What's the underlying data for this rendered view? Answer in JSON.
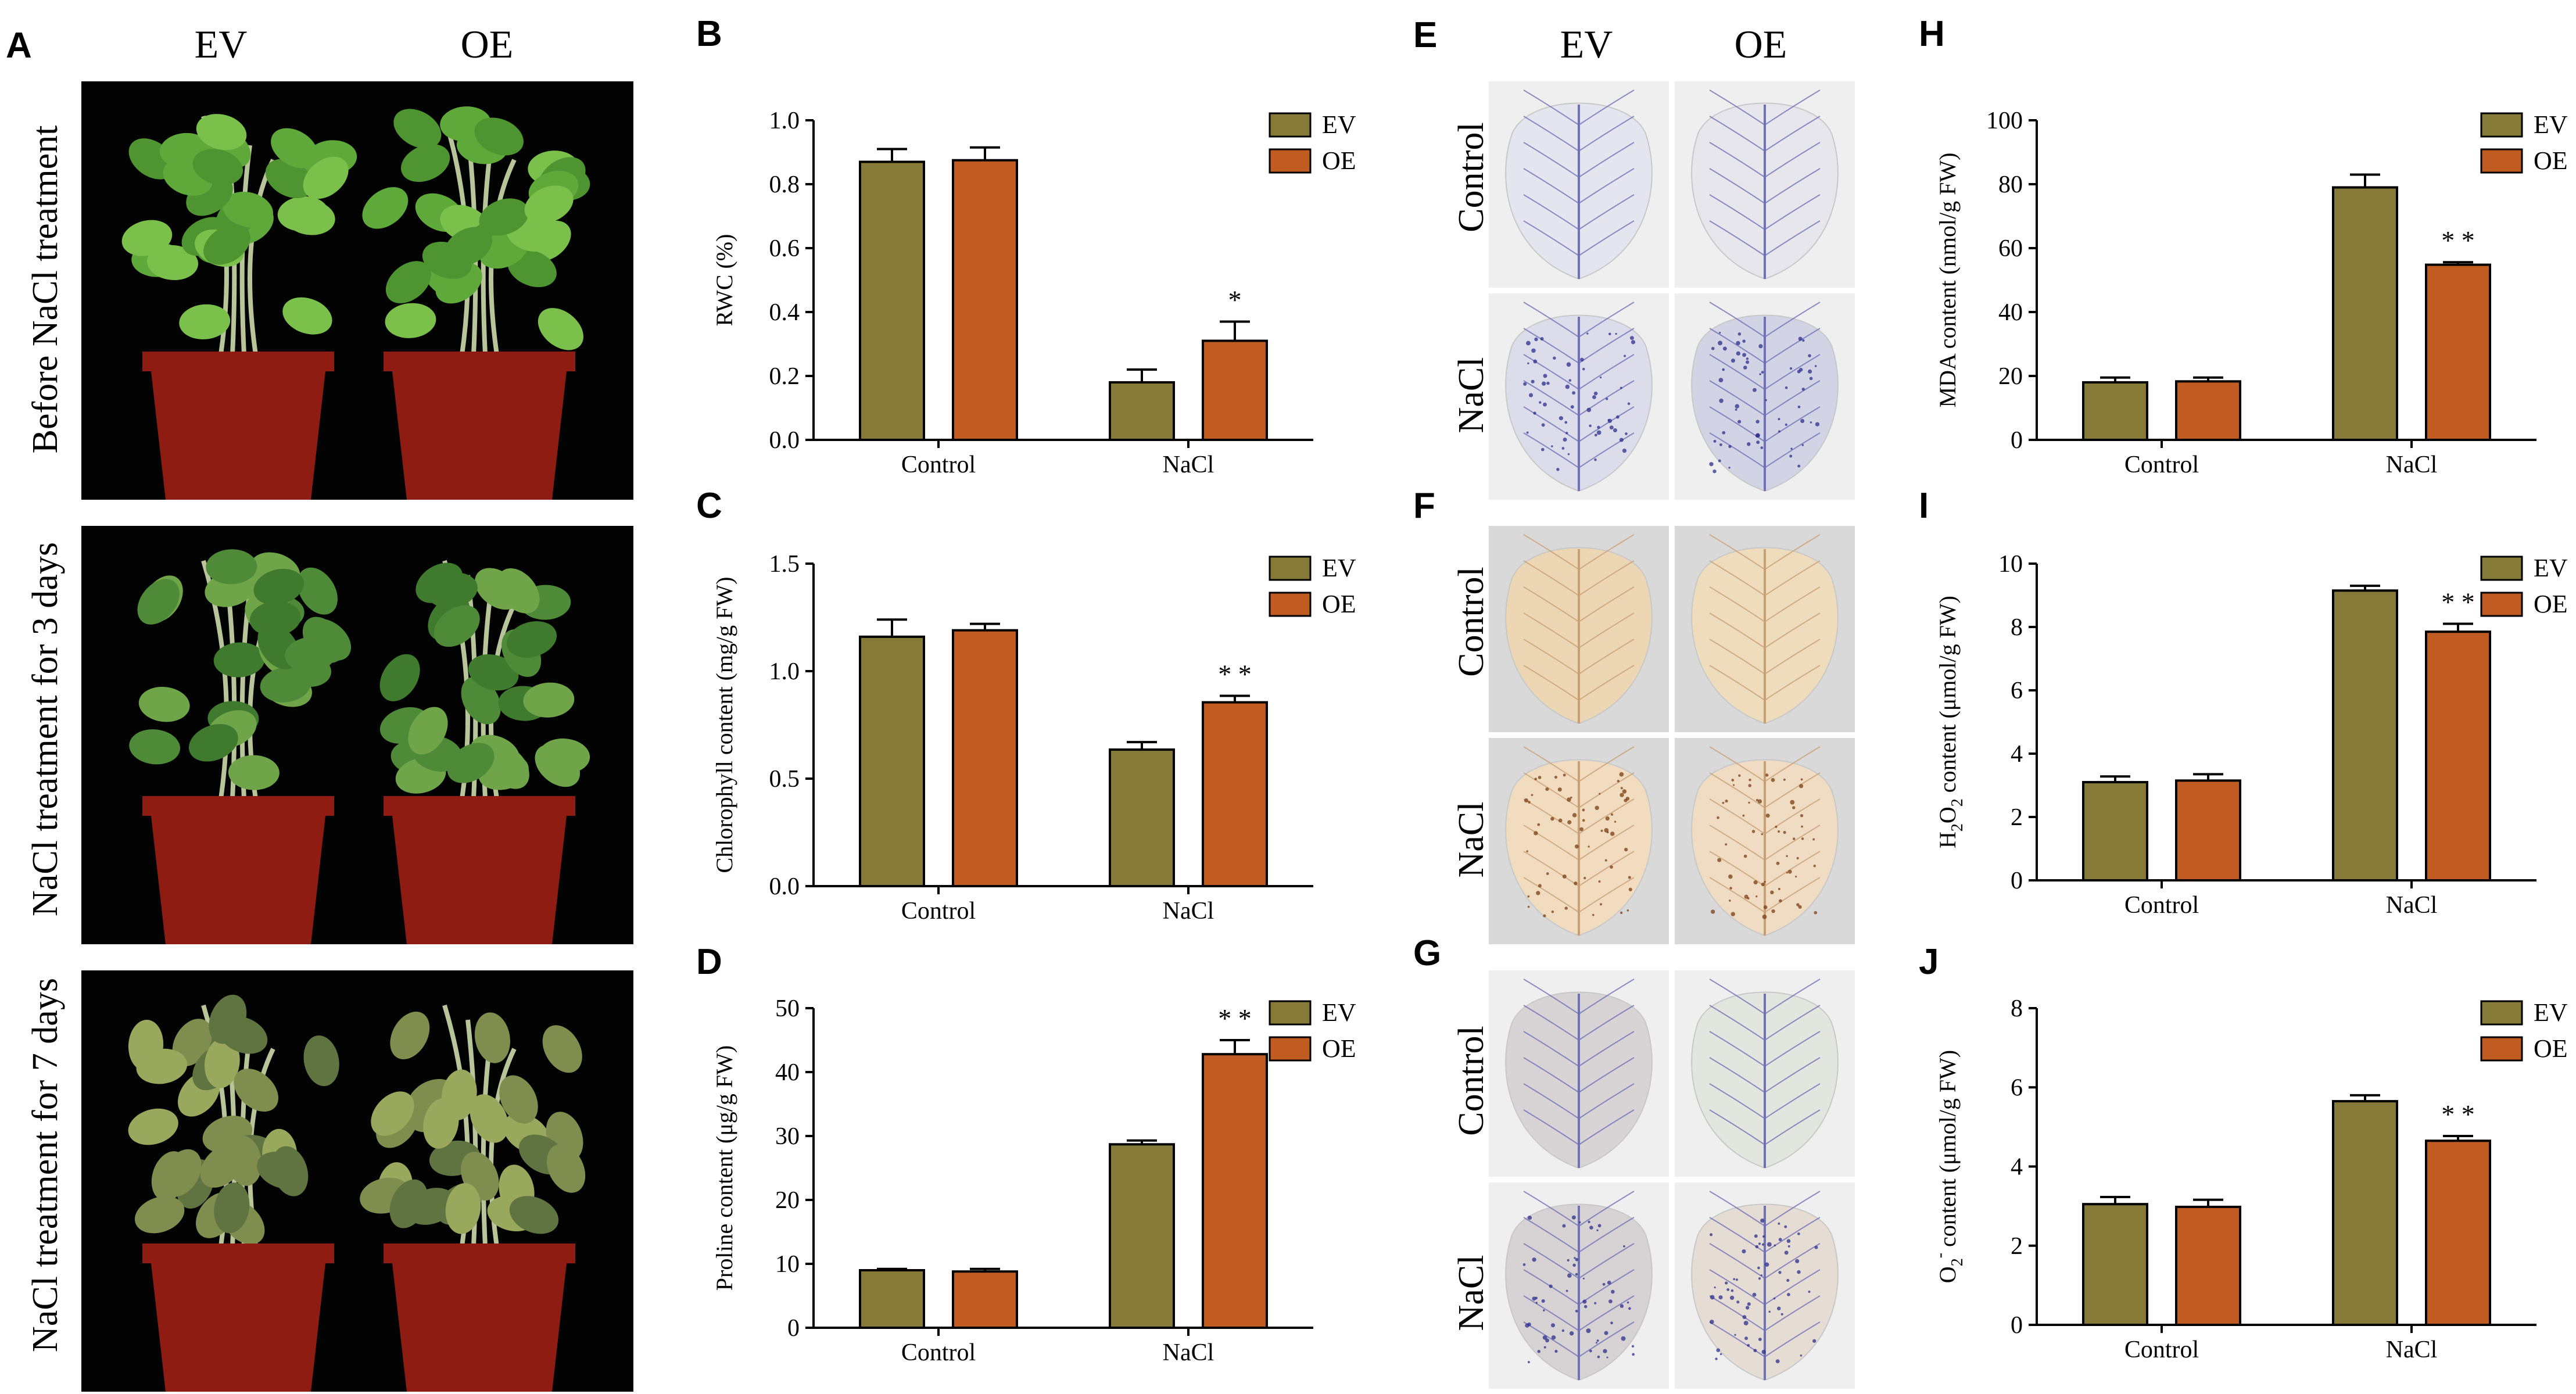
{
  "colors": {
    "EV": "#857a38",
    "OE": "#c05c22",
    "photo_bg": "#030303",
    "pot": "#8e1c12"
  },
  "panel_A": {
    "letter": "A",
    "columns": [
      "EV",
      "OE"
    ],
    "rows": [
      {
        "label": "Before NaCl treatment",
        "condition": "healthy"
      },
      {
        "label": "NaCl treatment for 3 days",
        "condition": "mild"
      },
      {
        "label": "NaCl treatment for 7 days",
        "condition": "severe"
      }
    ]
  },
  "staining": {
    "columns": [
      "EV",
      "OE"
    ],
    "rows": [
      "Control",
      "NaCl"
    ],
    "panels": [
      {
        "letter": "E",
        "stain": "NBT",
        "tiles": [
          [
            "#e5e5ef",
            "#e6e6ec"
          ],
          [
            "#dcdceb",
            "#d2d3e4"
          ]
        ]
      },
      {
        "letter": "F",
        "stain": "DAB",
        "tiles": [
          [
            "#ecd6b4",
            "#efdcbc"
          ],
          [
            "#f1dcc0",
            "#f0dcc2"
          ]
        ]
      },
      {
        "letter": "G",
        "stain": "NBT",
        "tiles": [
          [
            "#d8d3d4",
            "#e3e6de"
          ],
          [
            "#d7d2d3",
            "#e5dcd4"
          ]
        ]
      }
    ]
  },
  "chart_data": [
    {
      "letter": "B",
      "type": "bar",
      "title": "",
      "xlabel": "",
      "ylabel": "RWC (%)",
      "categories": [
        "Control",
        "NaCl"
      ],
      "ylim": [
        0,
        1.0
      ],
      "yticks": [
        "0.0",
        "0.2",
        "0.4",
        "0.6",
        "0.8",
        "1.0"
      ],
      "series": [
        {
          "name": "EV",
          "values": [
            0.87,
            0.18
          ],
          "errors": [
            0.04,
            0.04
          ]
        },
        {
          "name": "OE",
          "values": [
            0.875,
            0.31
          ],
          "errors": [
            0.04,
            0.06
          ]
        }
      ],
      "annotations": [
        {
          "category": 1,
          "series": 1,
          "text": "*"
        }
      ],
      "legend": "top-right"
    },
    {
      "letter": "C",
      "type": "bar",
      "title": "",
      "xlabel": "",
      "ylabel": "Chlorophyll content (mg/g FW)",
      "categories": [
        "Control",
        "NaCl"
      ],
      "ylim": [
        0,
        1.5
      ],
      "yticks": [
        "0.0",
        "0.5",
        "1.0",
        "1.5"
      ],
      "series": [
        {
          "name": "EV",
          "values": [
            1.16,
            0.635
          ],
          "errors": [
            0.08,
            0.035
          ]
        },
        {
          "name": "OE",
          "values": [
            1.19,
            0.855
          ],
          "errors": [
            0.03,
            0.03
          ]
        }
      ],
      "annotations": [
        {
          "category": 1,
          "series": 1,
          "text": "* *"
        }
      ],
      "legend": "top-right"
    },
    {
      "letter": "D",
      "type": "bar",
      "title": "",
      "xlabel": "",
      "ylabel": "Proline content (μg/g FW)",
      "categories": [
        "Control",
        "NaCl"
      ],
      "ylim": [
        0,
        50
      ],
      "yticks": [
        "0",
        "10",
        "20",
        "30",
        "40",
        "50"
      ],
      "series": [
        {
          "name": "EV",
          "values": [
            9.0,
            28.7
          ],
          "errors": [
            0.2,
            0.6
          ]
        },
        {
          "name": "OE",
          "values": [
            8.8,
            42.8
          ],
          "errors": [
            0.4,
            2.2
          ]
        }
      ],
      "annotations": [
        {
          "category": 1,
          "series": 1,
          "text": "* *"
        }
      ],
      "legend": "top-right"
    },
    {
      "letter": "H",
      "type": "bar",
      "title": "",
      "xlabel": "",
      "ylabel": "MDA  content (nmol/g FW)",
      "categories": [
        "Control",
        "NaCl"
      ],
      "ylim": [
        0,
        100
      ],
      "yticks": [
        "0",
        "20",
        "40",
        "60",
        "80",
        "100"
      ],
      "series": [
        {
          "name": "EV",
          "values": [
            18.0,
            79.0
          ],
          "errors": [
            1.5,
            4.0
          ]
        },
        {
          "name": "OE",
          "values": [
            18.3,
            54.8
          ],
          "errors": [
            1.2,
            0.8
          ]
        }
      ],
      "annotations": [
        {
          "category": 1,
          "series": 1,
          "text": "* *"
        }
      ],
      "legend": "top-right"
    },
    {
      "letter": "I",
      "type": "bar",
      "title": "",
      "xlabel": "",
      "ylabel": "H2O2 content (μmol/g FW)",
      "ylabel_parts": {
        "pre": "H",
        "sub1": "2",
        "mid": "O",
        "sub2": "2",
        "post": " content (μmol/g FW)"
      },
      "categories": [
        "Control",
        "NaCl"
      ],
      "ylim": [
        0,
        10
      ],
      "yticks": [
        "0",
        "2",
        "4",
        "6",
        "8",
        "10"
      ],
      "series": [
        {
          "name": "EV",
          "values": [
            3.1,
            9.15
          ],
          "errors": [
            0.18,
            0.15
          ]
        },
        {
          "name": "OE",
          "values": [
            3.15,
            7.85
          ],
          "errors": [
            0.2,
            0.25
          ]
        }
      ],
      "annotations": [
        {
          "category": 1,
          "series": 1,
          "text": "* *"
        }
      ],
      "legend": "top-right"
    },
    {
      "letter": "J",
      "type": "bar",
      "title": "",
      "xlabel": "",
      "ylabel": "O2- content (μmol/g FW)",
      "ylabel_parts": {
        "pre": "O",
        "sub1": "2",
        "sup1": "-",
        "post": " content (μmol/g FW)"
      },
      "categories": [
        "Control",
        "NaCl"
      ],
      "ylim": [
        0,
        8
      ],
      "yticks": [
        "0",
        "2",
        "4",
        "6",
        "8"
      ],
      "series": [
        {
          "name": "EV",
          "values": [
            3.05,
            5.65
          ],
          "errors": [
            0.18,
            0.15
          ]
        },
        {
          "name": "OE",
          "values": [
            2.98,
            4.65
          ],
          "errors": [
            0.18,
            0.12
          ]
        }
      ],
      "annotations": [
        {
          "category": 1,
          "series": 1,
          "text": "* *"
        }
      ],
      "legend": "top-right"
    }
  ]
}
